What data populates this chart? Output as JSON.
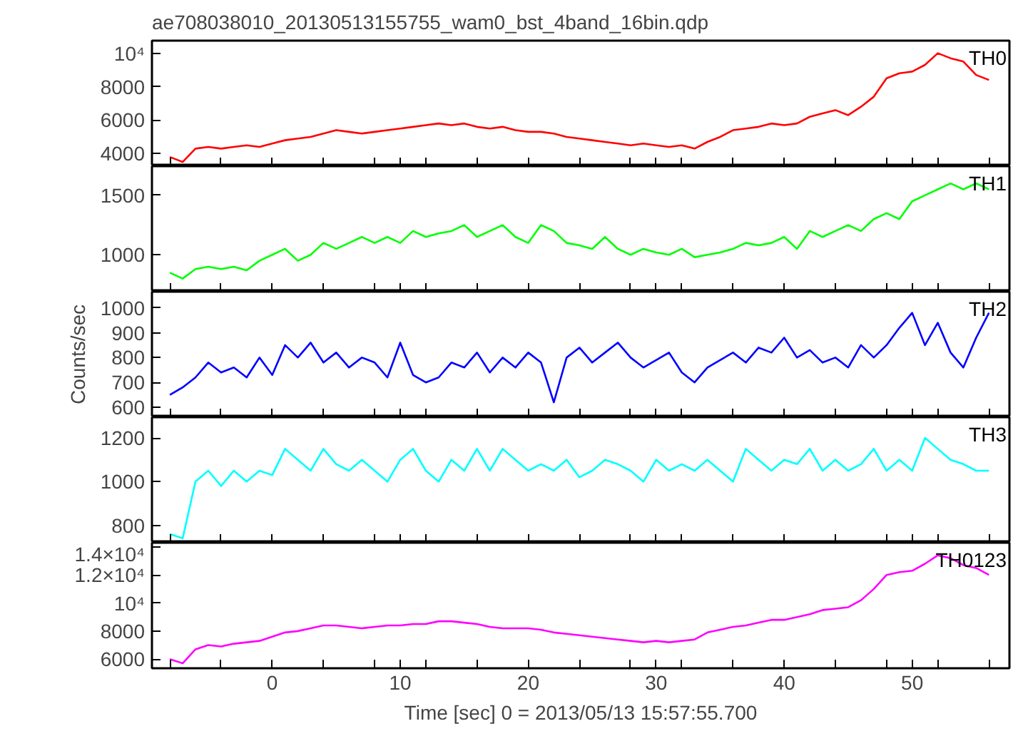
{
  "chart_data": [
    {
      "type": "line",
      "title": "ae708038010_20130513155755_wam0_bst_4band_16bin.qdp",
      "tick_labels": "y",
      "grid": false,
      "x": [
        -8,
        -7,
        -6,
        -5,
        -4,
        -3,
        -2,
        -1,
        0,
        1,
        2,
        3,
        4,
        5,
        6,
        7,
        8,
        9,
        10,
        11,
        12,
        13,
        14,
        15,
        16,
        17,
        18,
        19,
        20,
        21,
        22,
        23,
        24,
        25,
        26,
        27,
        28,
        29,
        30,
        31,
        32,
        33,
        34,
        35,
        36,
        37,
        38,
        39,
        40,
        41,
        42,
        43,
        44,
        45,
        46,
        47,
        48,
        49,
        50,
        51,
        52,
        53,
        54,
        55,
        56
      ],
      "xlim": [
        -9.4,
        57.6
      ],
      "xticks": [
        {
          "value": -8,
          "label": null
        },
        {
          "value": -4,
          "label": null
        },
        0,
        {
          "value": 4,
          "label": null
        },
        {
          "value": 8,
          "label": null
        },
        10,
        {
          "value": 12,
          "label": null
        },
        {
          "value": 16,
          "label": null
        },
        20,
        {
          "value": 24,
          "label": null
        },
        {
          "value": 28,
          "label": null
        },
        30,
        {
          "value": 32,
          "label": null
        },
        {
          "value": 36,
          "label": null
        },
        40,
        {
          "value": 44,
          "label": null
        },
        {
          "value": 48,
          "label": null
        },
        50,
        {
          "value": 52,
          "label": null
        },
        {
          "value": 56,
          "label": null
        }
      ],
      "ylim": [
        3250,
        10750
      ],
      "yticks": [
        4000,
        6000,
        8000,
        {
          "value": 10000,
          "label": "10⁴"
        }
      ],
      "series": [
        {
          "name": "TH0",
          "color": "#ff0000",
          "values": [
            3800,
            3500,
            4300,
            4400,
            4300,
            4400,
            4500,
            4400,
            4600,
            4800,
            4900,
            5000,
            5200,
            5400,
            5300,
            5200,
            5300,
            5400,
            5500,
            5600,
            5700,
            5800,
            5700,
            5800,
            5600,
            5500,
            5600,
            5400,
            5300,
            5300,
            5200,
            5000,
            4900,
            4800,
            4700,
            4600,
            4500,
            4600,
            4500,
            4400,
            4500,
            4300,
            4700,
            5000,
            5400,
            5500,
            5600,
            5800,
            5700,
            5800,
            6200,
            6400,
            6600,
            6300,
            6800,
            7400,
            8500,
            8800,
            8900,
            9300,
            10000,
            9700,
            9500,
            8700,
            8400
          ]
        }
      ]
    },
    {
      "type": "line",
      "tick_labels": "y",
      "grid": false,
      "x": [
        -8,
        -7,
        -6,
        -5,
        -4,
        -3,
        -2,
        -1,
        0,
        1,
        2,
        3,
        4,
        5,
        6,
        7,
        8,
        9,
        10,
        11,
        12,
        13,
        14,
        15,
        16,
        17,
        18,
        19,
        20,
        21,
        22,
        23,
        24,
        25,
        26,
        27,
        28,
        29,
        30,
        31,
        32,
        33,
        34,
        35,
        36,
        37,
        38,
        39,
        40,
        41,
        42,
        43,
        44,
        45,
        46,
        47,
        48,
        49,
        50,
        51,
        52,
        53,
        54,
        55,
        56
      ],
      "xlim": [
        -9.4,
        57.6
      ],
      "xticks": [
        {
          "value": -8,
          "label": null
        },
        {
          "value": -4,
          "label": null
        },
        0,
        {
          "value": 4,
          "label": null
        },
        {
          "value": 8,
          "label": null
        },
        10,
        {
          "value": 12,
          "label": null
        },
        {
          "value": 16,
          "label": null
        },
        20,
        {
          "value": 24,
          "label": null
        },
        {
          "value": 28,
          "label": null
        },
        30,
        {
          "value": 32,
          "label": null
        },
        {
          "value": 36,
          "label": null
        },
        40,
        {
          "value": 44,
          "label": null
        },
        {
          "value": 48,
          "label": null
        },
        50,
        {
          "value": 52,
          "label": null
        },
        {
          "value": 56,
          "label": null
        }
      ],
      "ylim": [
        690,
        1745
      ],
      "yticks": [
        1000,
        1500
      ],
      "series": [
        {
          "name": "TH1",
          "color": "#00ff00",
          "values": [
            850,
            800,
            880,
            900,
            880,
            900,
            870,
            950,
            1000,
            1050,
            950,
            1000,
            1100,
            1050,
            1100,
            1150,
            1100,
            1150,
            1100,
            1200,
            1150,
            1180,
            1200,
            1250,
            1150,
            1200,
            1250,
            1150,
            1100,
            1250,
            1200,
            1100,
            1080,
            1050,
            1150,
            1050,
            1000,
            1050,
            1020,
            1000,
            1050,
            980,
            1000,
            1020,
            1050,
            1100,
            1080,
            1100,
            1150,
            1050,
            1200,
            1150,
            1200,
            1250,
            1200,
            1300,
            1350,
            1300,
            1450,
            1500,
            1550,
            1600,
            1550,
            1600,
            1550
          ]
        }
      ]
    },
    {
      "type": "line",
      "ylabel": "Counts/sec",
      "tick_labels": "y",
      "grid": false,
      "x": [
        -8,
        -7,
        -6,
        -5,
        -4,
        -3,
        -2,
        -1,
        0,
        1,
        2,
        3,
        4,
        5,
        6,
        7,
        8,
        9,
        10,
        11,
        12,
        13,
        14,
        15,
        16,
        17,
        18,
        19,
        20,
        21,
        22,
        23,
        24,
        25,
        26,
        27,
        28,
        29,
        30,
        31,
        32,
        33,
        34,
        35,
        36,
        37,
        38,
        39,
        40,
        41,
        42,
        43,
        44,
        45,
        46,
        47,
        48,
        49,
        50,
        51,
        52,
        53,
        54,
        55,
        56
      ],
      "xlim": [
        -9.4,
        57.6
      ],
      "xticks": [
        {
          "value": -8,
          "label": null
        },
        {
          "value": -4,
          "label": null
        },
        0,
        {
          "value": 4,
          "label": null
        },
        {
          "value": 8,
          "label": null
        },
        10,
        {
          "value": 12,
          "label": null
        },
        {
          "value": 16,
          "label": null
        },
        20,
        {
          "value": 24,
          "label": null
        },
        {
          "value": 28,
          "label": null
        },
        30,
        {
          "value": 32,
          "label": null
        },
        {
          "value": 36,
          "label": null
        },
        40,
        {
          "value": 44,
          "label": null
        },
        {
          "value": 48,
          "label": null
        },
        50,
        {
          "value": 52,
          "label": null
        },
        {
          "value": 56,
          "label": null
        }
      ],
      "ylim": [
        560,
        1065
      ],
      "yticks": [
        600,
        700,
        800,
        900,
        1000
      ],
      "series": [
        {
          "name": "TH2",
          "color": "#0000ff",
          "values": [
            650,
            680,
            720,
            780,
            740,
            760,
            720,
            800,
            730,
            850,
            800,
            860,
            780,
            820,
            760,
            800,
            780,
            720,
            860,
            730,
            700,
            720,
            780,
            760,
            820,
            740,
            800,
            760,
            820,
            780,
            620,
            800,
            840,
            780,
            820,
            860,
            800,
            760,
            790,
            820,
            740,
            700,
            760,
            790,
            820,
            780,
            840,
            820,
            880,
            800,
            830,
            780,
            800,
            760,
            850,
            800,
            850,
            920,
            980,
            850,
            940,
            820,
            760,
            880,
            980
          ]
        }
      ]
    },
    {
      "type": "line",
      "tick_labels": "y",
      "grid": false,
      "x": [
        -8,
        -7,
        -6,
        -5,
        -4,
        -3,
        -2,
        -1,
        0,
        1,
        2,
        3,
        4,
        5,
        6,
        7,
        8,
        9,
        10,
        11,
        12,
        13,
        14,
        15,
        16,
        17,
        18,
        19,
        20,
        21,
        22,
        23,
        24,
        25,
        26,
        27,
        28,
        29,
        30,
        31,
        32,
        33,
        34,
        35,
        36,
        37,
        38,
        39,
        40,
        41,
        42,
        43,
        44,
        45,
        46,
        47,
        48,
        49,
        50,
        51,
        52,
        53,
        54,
        55,
        56
      ],
      "xlim": [
        -9.4,
        57.6
      ],
      "xticks": [
        {
          "value": -8,
          "label": null
        },
        {
          "value": -4,
          "label": null
        },
        0,
        {
          "value": 4,
          "label": null
        },
        {
          "value": 8,
          "label": null
        },
        10,
        {
          "value": 12,
          "label": null
        },
        {
          "value": 16,
          "label": null
        },
        20,
        {
          "value": 24,
          "label": null
        },
        {
          "value": 28,
          "label": null
        },
        30,
        {
          "value": 32,
          "label": null
        },
        {
          "value": 36,
          "label": null
        },
        40,
        {
          "value": 44,
          "label": null
        },
        {
          "value": 48,
          "label": null
        },
        50,
        {
          "value": 52,
          "label": null
        },
        {
          "value": 56,
          "label": null
        }
      ],
      "ylim": [
        720,
        1295
      ],
      "yticks": [
        800,
        1000,
        1200
      ],
      "series": [
        {
          "name": "TH3",
          "color": "#00ffff",
          "values": [
            760,
            740,
            1000,
            1050,
            980,
            1050,
            1000,
            1050,
            1030,
            1150,
            1100,
            1050,
            1150,
            1080,
            1050,
            1100,
            1050,
            1000,
            1100,
            1150,
            1050,
            1000,
            1100,
            1050,
            1150,
            1050,
            1150,
            1100,
            1050,
            1080,
            1050,
            1100,
            1020,
            1050,
            1100,
            1080,
            1050,
            1000,
            1100,
            1050,
            1080,
            1050,
            1100,
            1050,
            1000,
            1150,
            1100,
            1050,
            1100,
            1080,
            1150,
            1050,
            1100,
            1050,
            1080,
            1150,
            1050,
            1100,
            1050,
            1200,
            1150,
            1100,
            1080,
            1050,
            1050
          ]
        }
      ]
    },
    {
      "type": "line",
      "xlabel": "Time [sec] 0 = 2013/05/13 15:57:55.700",
      "grid": false,
      "x": [
        -8,
        -7,
        -6,
        -5,
        -4,
        -3,
        -2,
        -1,
        0,
        1,
        2,
        3,
        4,
        5,
        6,
        7,
        8,
        9,
        10,
        11,
        12,
        13,
        14,
        15,
        16,
        17,
        18,
        19,
        20,
        21,
        22,
        23,
        24,
        25,
        26,
        27,
        28,
        29,
        30,
        31,
        32,
        33,
        34,
        35,
        36,
        37,
        38,
        39,
        40,
        41,
        42,
        43,
        44,
        45,
        46,
        47,
        48,
        49,
        50,
        51,
        52,
        53,
        54,
        55,
        56
      ],
      "xlim": [
        -9.4,
        57.6
      ],
      "xticks": [
        {
          "value": -8,
          "label": null
        },
        {
          "value": -4,
          "label": null
        },
        0,
        {
          "value": 4,
          "label": null
        },
        {
          "value": 8,
          "label": null
        },
        10,
        {
          "value": 12,
          "label": null
        },
        {
          "value": 16,
          "label": null
        },
        20,
        {
          "value": 24,
          "label": null
        },
        {
          "value": 28,
          "label": null
        },
        30,
        {
          "value": 32,
          "label": null
        },
        {
          "value": 36,
          "label": null
        },
        40,
        {
          "value": 44,
          "label": null
        },
        {
          "value": 48,
          "label": null
        },
        50,
        {
          "value": 52,
          "label": null
        },
        {
          "value": 56,
          "label": null
        }
      ],
      "ylim": [
        5350,
        14300
      ],
      "yticks": [
        6000,
        8000,
        {
          "value": 10000,
          "label": "10⁴"
        },
        {
          "value": 12000,
          "label": "1.2×10⁴"
        },
        {
          "value": 14000,
          "label": "1.4×10⁴"
        }
      ],
      "series": [
        {
          "name": "TH0123",
          "color": "#ff00ff",
          "values": [
            6000,
            5700,
            6700,
            7000,
            6900,
            7100,
            7200,
            7300,
            7600,
            7900,
            8000,
            8200,
            8400,
            8400,
            8300,
            8200,
            8300,
            8400,
            8400,
            8500,
            8500,
            8700,
            8700,
            8600,
            8500,
            8300,
            8200,
            8200,
            8200,
            8100,
            7900,
            7800,
            7700,
            7600,
            7500,
            7400,
            7300,
            7200,
            7300,
            7200,
            7300,
            7400,
            7900,
            8100,
            8300,
            8400,
            8600,
            8800,
            8800,
            9000,
            9200,
            9500,
            9600,
            9700,
            10200,
            11000,
            12000,
            12200,
            12300,
            12800,
            13400,
            13200,
            12700,
            12500,
            12000
          ]
        }
      ]
    }
  ]
}
